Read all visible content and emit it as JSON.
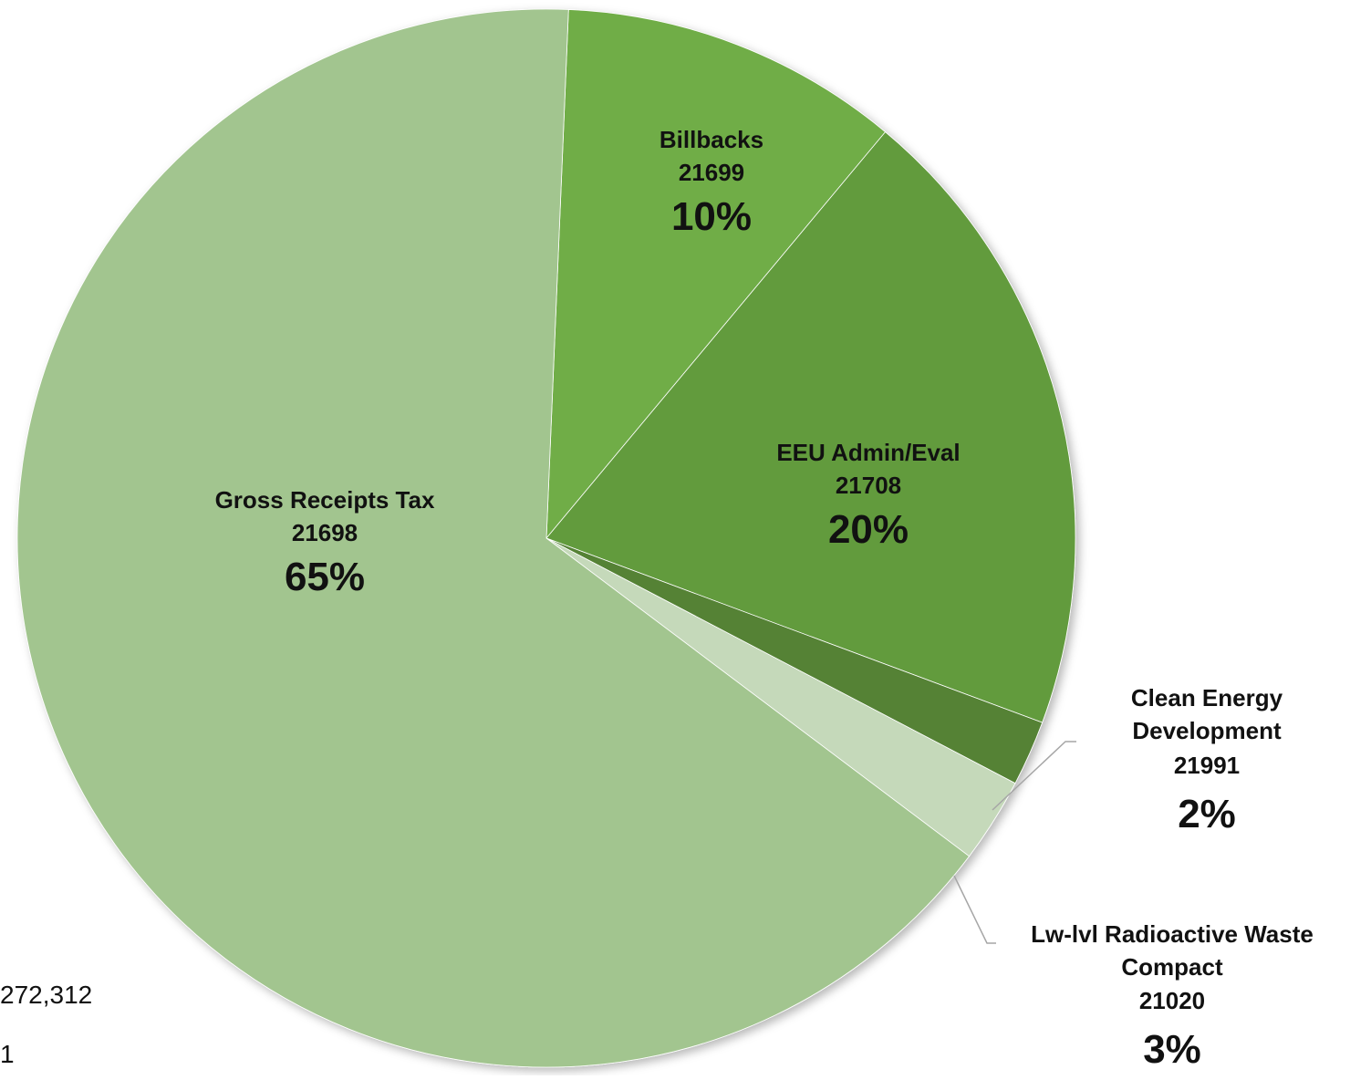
{
  "chart_data": {
    "type": "pie",
    "title": "",
    "start_angle_deg": -87.6,
    "direction": "clockwise",
    "slices": [
      {
        "name": "Billbacks",
        "code": "21699",
        "pct_label": "10%",
        "value": 10.4,
        "color": "#70AD47",
        "label_position": "inside"
      },
      {
        "name": "EEU Admin/Eval",
        "code": "21708",
        "pct_label": "20%",
        "value": 19.6,
        "color": "#629B3E",
        "label_position": "inside"
      },
      {
        "name": "Clean Energy Development",
        "code": "21991",
        "pct_label": "2%",
        "value": 2.0,
        "color": "#548235",
        "label_position": "outside"
      },
      {
        "name": "Lw-lvl Radioactive Waste Compact",
        "code": "21020",
        "pct_label": "3%",
        "value": 2.6,
        "color": "#C5D9BA",
        "label_position": "outside"
      },
      {
        "name": "Gross Receipts Tax",
        "code": "21698",
        "pct_label": "65%",
        "value": 65.4,
        "color": "#A2C58F",
        "label_position": "inside"
      }
    ]
  },
  "side_texts": [
    "272,312",
    "1"
  ]
}
